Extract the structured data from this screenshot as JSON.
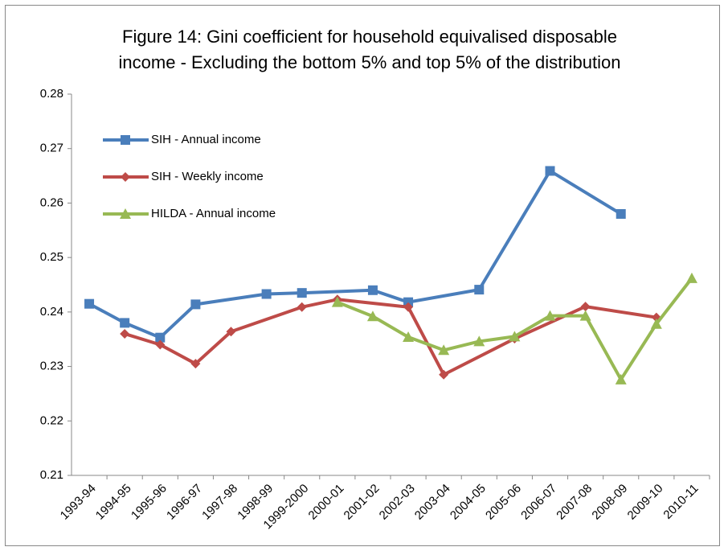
{
  "chart_data": {
    "type": "line",
    "title": "Figure 14: Gini coefficient for household equivalised disposable income - Excluding the bottom 5% and top 5% of the distribution",
    "categories": [
      "1993-94",
      "1994-95",
      "1995-96",
      "1996-97",
      "1997-98",
      "1998-99",
      "1999-2000",
      "2000-01",
      "2001-02",
      "2002-03",
      "2003-04",
      "2004-05",
      "2005-06",
      "2006-07",
      "2007-08",
      "2008-09",
      "2009-10",
      "2010-11"
    ],
    "series": [
      {
        "name": "SIH - Annual income",
        "color": "#4a7ebb",
        "marker": "square",
        "values": [
          0.2415,
          0.238,
          0.2353,
          0.2414,
          null,
          0.2433,
          0.2435,
          null,
          0.244,
          0.2418,
          null,
          0.2441,
          null,
          0.2659,
          null,
          0.258,
          null,
          null
        ]
      },
      {
        "name": "SIH - Weekly income",
        "color": "#be4b48",
        "marker": "diamond",
        "values": [
          null,
          0.236,
          0.234,
          0.2305,
          0.2364,
          null,
          0.2409,
          0.2423,
          null,
          0.2409,
          0.2285,
          null,
          0.2351,
          null,
          0.241,
          null,
          0.239,
          null
        ]
      },
      {
        "name": "HILDA - Annual income",
        "color": "#98b954",
        "marker": "triangle",
        "values": [
          null,
          null,
          null,
          null,
          null,
          null,
          null,
          0.2418,
          0.2392,
          0.2354,
          0.233,
          0.2346,
          0.2355,
          0.2393,
          0.2393,
          0.2276,
          0.2378,
          0.2462
        ]
      }
    ],
    "ylim": [
      0.21,
      0.28
    ],
    "yticks": [
      0.21,
      0.22,
      0.23,
      0.24,
      0.25,
      0.26,
      0.27,
      0.28
    ],
    "grid": false,
    "legend": "top-left"
  }
}
